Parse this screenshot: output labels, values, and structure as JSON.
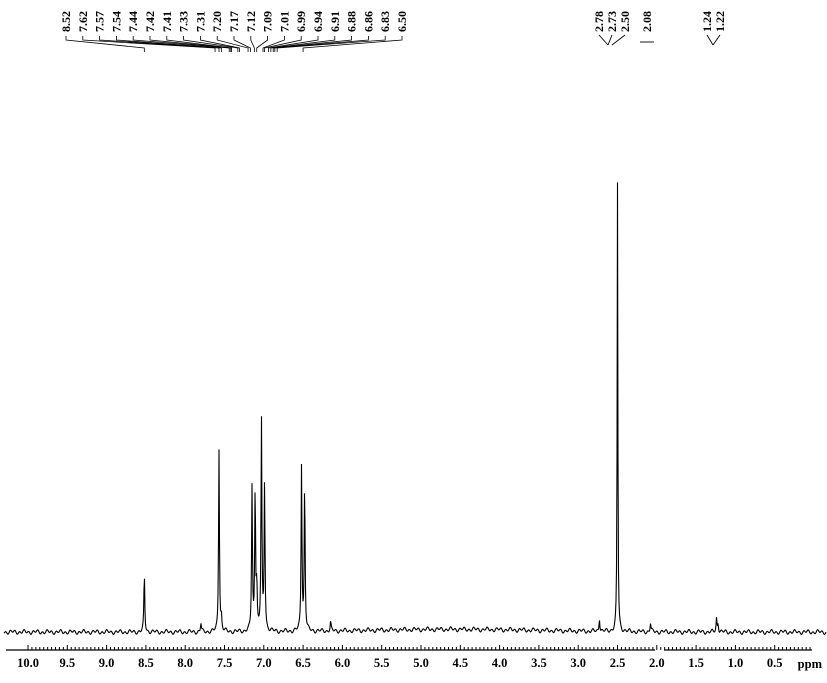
{
  "chart_data": {
    "type": "line",
    "xlabel": "ppm",
    "xlim": [
      10.0,
      0.0
    ],
    "x_reversed": true,
    "grid": false,
    "x_ticks": [
      "10.0",
      "9.5",
      "9.0",
      "8.5",
      "8.0",
      "7.5",
      "7.0",
      "6.5",
      "6.0",
      "5.5",
      "5.0",
      "4.5",
      "4.0",
      "3.5",
      "3.0",
      "2.5",
      "2.0",
      "1.5",
      "1.0",
      "0.5"
    ],
    "peak_labels": {
      "aromatic": [
        "8.52",
        "7.62",
        "7.57",
        "7.54",
        "7.44",
        "7.42",
        "7.41",
        "7.33",
        "7.31",
        "7.20",
        "7.17",
        "7.12",
        "7.09",
        "7.01",
        "6.99",
        "6.94",
        "6.91",
        "6.88",
        "6.86",
        "6.83",
        "6.50"
      ],
      "aliphatic": [
        "2.78",
        "2.73",
        "2.50",
        "2.08",
        "1.24",
        "1.22"
      ]
    },
    "peaks": [
      {
        "ppm": 8.52,
        "intensity": 0.13
      },
      {
        "ppm": 7.8,
        "intensity": 0.02
      },
      {
        "ppm": 7.57,
        "intensity": 0.41
      },
      {
        "ppm": 7.54,
        "intensity": 0.03
      },
      {
        "ppm": 7.15,
        "intensity": 0.32
      },
      {
        "ppm": 7.11,
        "intensity": 0.32
      },
      {
        "ppm": 7.09,
        "intensity": 0.1
      },
      {
        "ppm": 7.03,
        "intensity": 0.47
      },
      {
        "ppm": 6.99,
        "intensity": 0.33
      },
      {
        "ppm": 6.52,
        "intensity": 0.37
      },
      {
        "ppm": 6.48,
        "intensity": 0.33
      },
      {
        "ppm": 6.15,
        "intensity": 0.02
      },
      {
        "ppm": 2.73,
        "intensity": 0.03
      },
      {
        "ppm": 2.5,
        "intensity": 1.0
      },
      {
        "ppm": 2.08,
        "intensity": 0.02
      },
      {
        "ppm": 1.24,
        "intensity": 0.03
      },
      {
        "ppm": 1.22,
        "intensity": 0.02
      }
    ]
  }
}
